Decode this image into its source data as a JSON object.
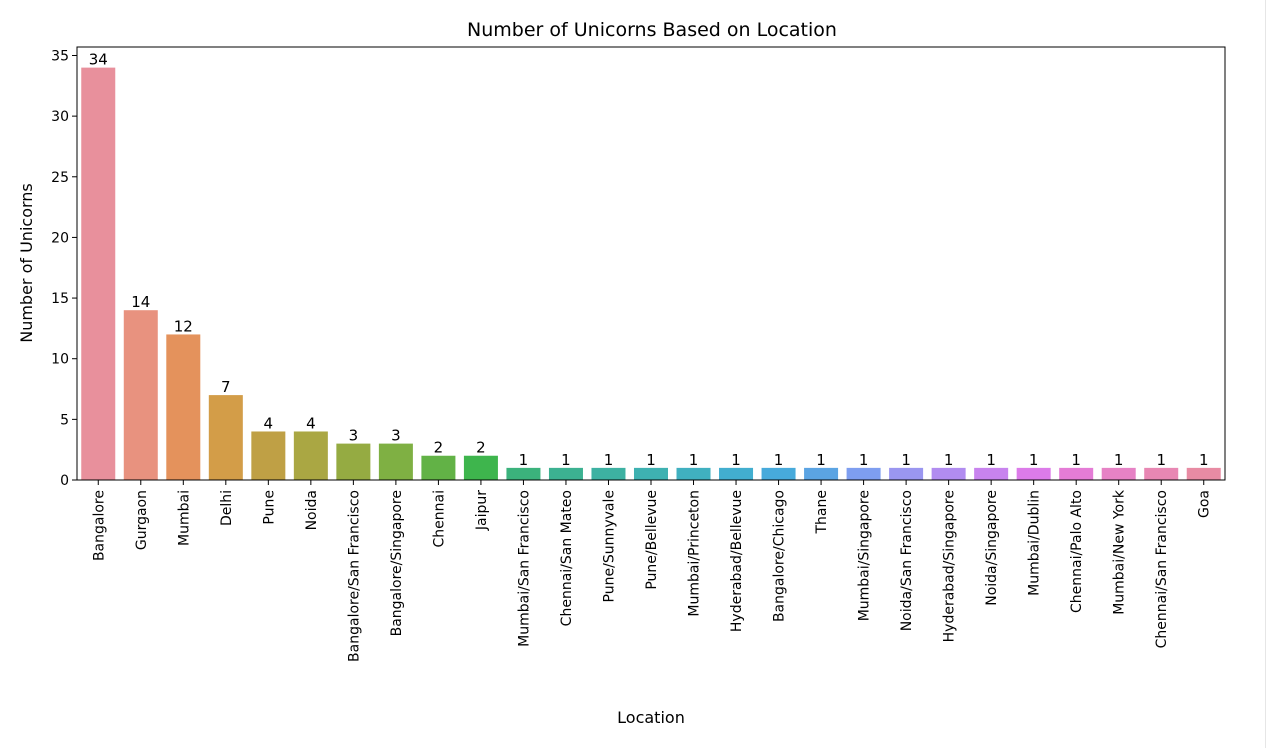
{
  "chart_data": {
    "type": "bar",
    "title": "Number of Unicorns Based on Location",
    "xlabel": "Location",
    "ylabel": "Number of Unicorns",
    "ylim": [
      0,
      35.7
    ],
    "yticks": [
      0,
      5,
      10,
      15,
      20,
      25,
      30,
      35
    ],
    "grid": false,
    "categories": [
      "Bangalore",
      "Gurgaon",
      "Mumbai",
      "Delhi",
      "Pune",
      "Noida",
      "Bangalore/San Francisco",
      "Bangalore/Singapore",
      "Chennai",
      "Jaipur",
      "Mumbai/San Francisco",
      "Chennai/San Mateo",
      "Pune/Sunnyvale",
      "Pune/Bellevue",
      "Mumbai/Princeton",
      "Hyderabad/Bellevue",
      "Bangalore/Chicago",
      "Thane",
      "Mumbai/Singapore",
      "Noida/San Francisco",
      "Hyderabad/Singapore",
      "Noida/Singapore",
      "Mumbai/Dublin",
      "Chennai/Palo Alto",
      "Mumbai/New York",
      "Chennai/San Francisco",
      "Goa"
    ],
    "values": [
      34,
      14,
      12,
      7,
      4,
      4,
      3,
      3,
      2,
      2,
      1,
      1,
      1,
      1,
      1,
      1,
      1,
      1,
      1,
      1,
      1,
      1,
      1,
      1,
      1,
      1,
      1
    ],
    "colors": [
      "#e8909c",
      "#e8927f",
      "#e4925c",
      "#d39d48",
      "#bfa045",
      "#aaa743",
      "#95ab42",
      "#7fb043",
      "#62b246",
      "#3eb54d",
      "#3bb27c",
      "#3cb191",
      "#3db1a2",
      "#3eb1b1",
      "#40b0c0",
      "#42aecf",
      "#47aadb",
      "#5ba4e3",
      "#7e9ef0",
      "#9a96f0",
      "#b18cf0",
      "#c883ee",
      "#dc7be9",
      "#e47cd6",
      "#e682c5",
      "#e887b3",
      "#e88ba3"
    ]
  }
}
